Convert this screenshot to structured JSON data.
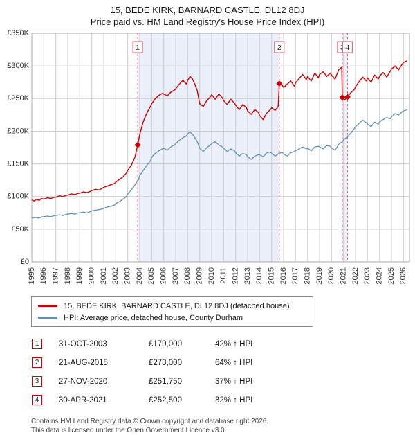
{
  "header": {
    "title": "15, BEDE KIRK, BARNARD CASTLE, DL12 8DJ",
    "subtitle": "Price paid vs. HM Land Registry's House Price Index (HPI)"
  },
  "chart_data": {
    "type": "line",
    "title": "15, BEDE KIRK, BARNARD CASTLE, DL12 8DJ",
    "subtitle": "Price paid vs. HM Land Registry's House Price Index (HPI)",
    "x_range": [
      1995,
      2026.5
    ],
    "y_range": [
      0,
      350
    ],
    "y_unit": "£K",
    "grid": true,
    "x_ticks": [
      1995,
      1996,
      1997,
      1998,
      1999,
      2000,
      2001,
      2002,
      2003,
      2004,
      2005,
      2006,
      2007,
      2008,
      2009,
      2010,
      2011,
      2012,
      2013,
      2014,
      2015,
      2016,
      2017,
      2018,
      2019,
      2020,
      2021,
      2022,
      2023,
      2024,
      2025,
      2026
    ],
    "y_ticks": [
      0,
      50,
      100,
      150,
      200,
      250,
      300,
      350
    ],
    "y_tick_labels": [
      "£0",
      "£50K",
      "£100K",
      "£150K",
      "£200K",
      "£250K",
      "£300K",
      "£350K"
    ],
    "shaded_regions": [
      [
        2003.83,
        2015.64
      ],
      [
        2020.9,
        2021.33
      ]
    ],
    "colors": {
      "property": "#cc0000",
      "hpi": "#6090b5",
      "grid": "#cccccc",
      "axis": "#aaaaaa",
      "shade": "#eaeff9",
      "sale_line": "#dd5566"
    },
    "series": [
      {
        "name": "15, BEDE KIRK, BARNARD CASTLE, DL12 8DJ (detached house)",
        "color": "#cc0000",
        "width": 1.4,
        "points": [
          [
            1995.0,
            95
          ],
          [
            1995.2,
            93
          ],
          [
            1995.4,
            96
          ],
          [
            1995.6,
            94
          ],
          [
            1995.8,
            97
          ],
          [
            1996.0,
            96
          ],
          [
            1996.3,
            98
          ],
          [
            1996.6,
            97
          ],
          [
            1996.9,
            99
          ],
          [
            1997.0,
            99
          ],
          [
            1997.3,
            101
          ],
          [
            1997.6,
            100
          ],
          [
            1997.9,
            102
          ],
          [
            1998.0,
            102
          ],
          [
            1998.3,
            104
          ],
          [
            1998.6,
            103
          ],
          [
            1998.9,
            105
          ],
          [
            1999.0,
            105
          ],
          [
            1999.3,
            107
          ],
          [
            1999.6,
            106
          ],
          [
            1999.9,
            108
          ],
          [
            2000.0,
            109
          ],
          [
            2000.3,
            111
          ],
          [
            2000.6,
            110
          ],
          [
            2000.9,
            113
          ],
          [
            2001.0,
            114
          ],
          [
            2001.3,
            116
          ],
          [
            2001.6,
            118
          ],
          [
            2001.9,
            120
          ],
          [
            2002.0,
            122
          ],
          [
            2002.3,
            126
          ],
          [
            2002.6,
            130
          ],
          [
            2002.9,
            136
          ],
          [
            2003.0,
            140
          ],
          [
            2003.3,
            148
          ],
          [
            2003.6,
            160
          ],
          [
            2003.83,
            179
          ],
          [
            2004.0,
            195
          ],
          [
            2004.3,
            215
          ],
          [
            2004.6,
            228
          ],
          [
            2004.9,
            238
          ],
          [
            2005.0,
            242
          ],
          [
            2005.3,
            250
          ],
          [
            2005.6,
            255
          ],
          [
            2005.9,
            258
          ],
          [
            2006.0,
            257
          ],
          [
            2006.3,
            254
          ],
          [
            2006.6,
            260
          ],
          [
            2006.9,
            263
          ],
          [
            2007.0,
            265
          ],
          [
            2007.3,
            272
          ],
          [
            2007.6,
            278
          ],
          [
            2007.9,
            272
          ],
          [
            2008.0,
            278
          ],
          [
            2008.2,
            284
          ],
          [
            2008.4,
            280
          ],
          [
            2008.6,
            272
          ],
          [
            2008.8,
            262
          ],
          [
            2009.0,
            242
          ],
          [
            2009.3,
            238
          ],
          [
            2009.6,
            247
          ],
          [
            2009.9,
            253
          ],
          [
            2010.0,
            256
          ],
          [
            2010.3,
            249
          ],
          [
            2010.6,
            257
          ],
          [
            2010.9,
            251
          ],
          [
            2011.0,
            247
          ],
          [
            2011.3,
            241
          ],
          [
            2011.6,
            249
          ],
          [
            2011.9,
            243
          ],
          [
            2012.0,
            240
          ],
          [
            2012.3,
            233
          ],
          [
            2012.6,
            241
          ],
          [
            2012.9,
            236
          ],
          [
            2013.0,
            231
          ],
          [
            2013.3,
            226
          ],
          [
            2013.6,
            233
          ],
          [
            2013.9,
            229
          ],
          [
            2014.0,
            224
          ],
          [
            2014.3,
            218
          ],
          [
            2014.6,
            228
          ],
          [
            2014.9,
            233
          ],
          [
            2015.0,
            236
          ],
          [
            2015.3,
            232
          ],
          [
            2015.55,
            238
          ],
          [
            2015.64,
            273
          ],
          [
            2015.9,
            270
          ],
          [
            2016.0,
            267
          ],
          [
            2016.3,
            272
          ],
          [
            2016.6,
            277
          ],
          [
            2016.9,
            269
          ],
          [
            2017.0,
            274
          ],
          [
            2017.3,
            281
          ],
          [
            2017.6,
            287
          ],
          [
            2017.9,
            279
          ],
          [
            2018.0,
            284
          ],
          [
            2018.3,
            277
          ],
          [
            2018.6,
            289
          ],
          [
            2018.9,
            282
          ],
          [
            2019.0,
            287
          ],
          [
            2019.3,
            291
          ],
          [
            2019.6,
            284
          ],
          [
            2019.9,
            289
          ],
          [
            2020.0,
            286
          ],
          [
            2020.3,
            280
          ],
          [
            2020.6,
            294
          ],
          [
            2020.85,
            298
          ],
          [
            2020.9,
            251.75
          ],
          [
            2021.1,
            248
          ],
          [
            2021.33,
            252.5
          ],
          [
            2021.6,
            259
          ],
          [
            2021.9,
            264
          ],
          [
            2022.0,
            268
          ],
          [
            2022.3,
            276
          ],
          [
            2022.6,
            283
          ],
          [
            2022.9,
            277
          ],
          [
            2023.0,
            282
          ],
          [
            2023.3,
            275
          ],
          [
            2023.6,
            286
          ],
          [
            2023.9,
            280
          ],
          [
            2024.0,
            284
          ],
          [
            2024.3,
            290
          ],
          [
            2024.6,
            283
          ],
          [
            2024.9,
            292
          ],
          [
            2025.0,
            295
          ],
          [
            2025.3,
            300
          ],
          [
            2025.6,
            294
          ],
          [
            2025.9,
            303
          ],
          [
            2026.0,
            305
          ],
          [
            2026.3,
            308
          ]
        ]
      },
      {
        "name": "HPI: Average price, detached house, County Durham",
        "color": "#6090b5",
        "width": 1.3,
        "points": [
          [
            1995.0,
            67
          ],
          [
            1995.3,
            68
          ],
          [
            1995.6,
            67
          ],
          [
            1995.9,
            69
          ],
          [
            1996.0,
            69
          ],
          [
            1996.3,
            70
          ],
          [
            1996.6,
            69
          ],
          [
            1996.9,
            71
          ],
          [
            1997.0,
            71
          ],
          [
            1997.3,
            72
          ],
          [
            1997.6,
            71
          ],
          [
            1997.9,
            73
          ],
          [
            1998.0,
            73
          ],
          [
            1998.3,
            74
          ],
          [
            1998.6,
            73
          ],
          [
            1998.9,
            75
          ],
          [
            1999.0,
            75
          ],
          [
            1999.3,
            76
          ],
          [
            1999.6,
            75
          ],
          [
            1999.9,
            77
          ],
          [
            2000.0,
            78
          ],
          [
            2000.3,
            79
          ],
          [
            2000.6,
            80
          ],
          [
            2000.9,
            81
          ],
          [
            2001.0,
            82
          ],
          [
            2001.3,
            84
          ],
          [
            2001.6,
            85
          ],
          [
            2001.9,
            87
          ],
          [
            2002.0,
            89
          ],
          [
            2002.3,
            92
          ],
          [
            2002.6,
            96
          ],
          [
            2002.9,
            100
          ],
          [
            2003.0,
            104
          ],
          [
            2003.3,
            110
          ],
          [
            2003.6,
            118
          ],
          [
            2003.9,
            126
          ],
          [
            2004.0,
            132
          ],
          [
            2004.3,
            140
          ],
          [
            2004.6,
            148
          ],
          [
            2004.9,
            155
          ],
          [
            2005.0,
            160
          ],
          [
            2005.3,
            166
          ],
          [
            2005.6,
            170
          ],
          [
            2005.9,
            173
          ],
          [
            2006.0,
            174
          ],
          [
            2006.3,
            171
          ],
          [
            2006.6,
            176
          ],
          [
            2006.9,
            179
          ],
          [
            2007.0,
            181
          ],
          [
            2007.3,
            186
          ],
          [
            2007.6,
            190
          ],
          [
            2007.9,
            193
          ],
          [
            2008.0,
            196
          ],
          [
            2008.2,
            199
          ],
          [
            2008.5,
            193
          ],
          [
            2008.8,
            184
          ],
          [
            2009.0,
            174
          ],
          [
            2009.3,
            169
          ],
          [
            2009.6,
            175
          ],
          [
            2009.9,
            179
          ],
          [
            2010.0,
            181
          ],
          [
            2010.3,
            184
          ],
          [
            2010.6,
            179
          ],
          [
            2010.9,
            176
          ],
          [
            2011.0,
            174
          ],
          [
            2011.3,
            169
          ],
          [
            2011.6,
            173
          ],
          [
            2011.9,
            170
          ],
          [
            2012.0,
            167
          ],
          [
            2012.3,
            162
          ],
          [
            2012.6,
            166
          ],
          [
            2012.9,
            164
          ],
          [
            2013.0,
            161
          ],
          [
            2013.3,
            157
          ],
          [
            2013.6,
            162
          ],
          [
            2013.9,
            164
          ],
          [
            2014.0,
            164
          ],
          [
            2014.3,
            161
          ],
          [
            2014.6,
            167
          ],
          [
            2014.9,
            168
          ],
          [
            2015.0,
            166
          ],
          [
            2015.3,
            162
          ],
          [
            2015.6,
            166
          ],
          [
            2015.9,
            168
          ],
          [
            2016.0,
            165
          ],
          [
            2016.3,
            162
          ],
          [
            2016.6,
            167
          ],
          [
            2016.9,
            169
          ],
          [
            2017.0,
            170
          ],
          [
            2017.3,
            173
          ],
          [
            2017.6,
            176
          ],
          [
            2017.9,
            173
          ],
          [
            2018.0,
            174
          ],
          [
            2018.3,
            170
          ],
          [
            2018.6,
            176
          ],
          [
            2018.9,
            177
          ],
          [
            2019.0,
            176
          ],
          [
            2019.3,
            173
          ],
          [
            2019.6,
            178
          ],
          [
            2019.9,
            177
          ],
          [
            2020.0,
            174
          ],
          [
            2020.3,
            171
          ],
          [
            2020.6,
            180
          ],
          [
            2020.9,
            184
          ],
          [
            2021.0,
            187
          ],
          [
            2021.3,
            191
          ],
          [
            2021.6,
            197
          ],
          [
            2021.9,
            204
          ],
          [
            2022.0,
            207
          ],
          [
            2022.3,
            212
          ],
          [
            2022.6,
            217
          ],
          [
            2022.9,
            213
          ],
          [
            2023.0,
            211
          ],
          [
            2023.3,
            207
          ],
          [
            2023.6,
            214
          ],
          [
            2023.9,
            211
          ],
          [
            2024.0,
            214
          ],
          [
            2024.3,
            218
          ],
          [
            2024.6,
            221
          ],
          [
            2024.9,
            219
          ],
          [
            2025.0,
            222
          ],
          [
            2025.3,
            227
          ],
          [
            2025.6,
            225
          ],
          [
            2025.9,
            230
          ],
          [
            2026.0,
            231
          ],
          [
            2026.3,
            233
          ]
        ]
      }
    ],
    "sales": [
      {
        "n": "1",
        "x": 2003.83,
        "y": 179.0
      },
      {
        "n": "2",
        "x": 2015.64,
        "y": 273.0
      },
      {
        "n": "3",
        "x": 2020.9,
        "y": 251.75
      },
      {
        "n": "4",
        "x": 2021.33,
        "y": 252.5
      }
    ]
  },
  "legend": {
    "items": [
      {
        "label": "15, BEDE KIRK, BARNARD CASTLE, DL12 8DJ (detached house)",
        "color": "#cc0000"
      },
      {
        "label": "HPI: Average price, detached house, County Durham",
        "color": "#6090b5"
      }
    ]
  },
  "transactions": [
    {
      "n": "1",
      "date": "31-OCT-2003",
      "price": "£179,000",
      "hpi": "42% ↑ HPI"
    },
    {
      "n": "2",
      "date": "21-AUG-2015",
      "price": "£273,000",
      "hpi": "64% ↑ HPI"
    },
    {
      "n": "3",
      "date": "27-NOV-2020",
      "price": "£251,750",
      "hpi": "37% ↑ HPI"
    },
    {
      "n": "4",
      "date": "30-APR-2021",
      "price": "£252,500",
      "hpi": "32% ↑ HPI"
    }
  ],
  "footer": {
    "line1": "Contains HM Land Registry data © Crown copyright and database right 2026.",
    "line2": "This data is licensed under the Open Government Licence v3.0."
  }
}
